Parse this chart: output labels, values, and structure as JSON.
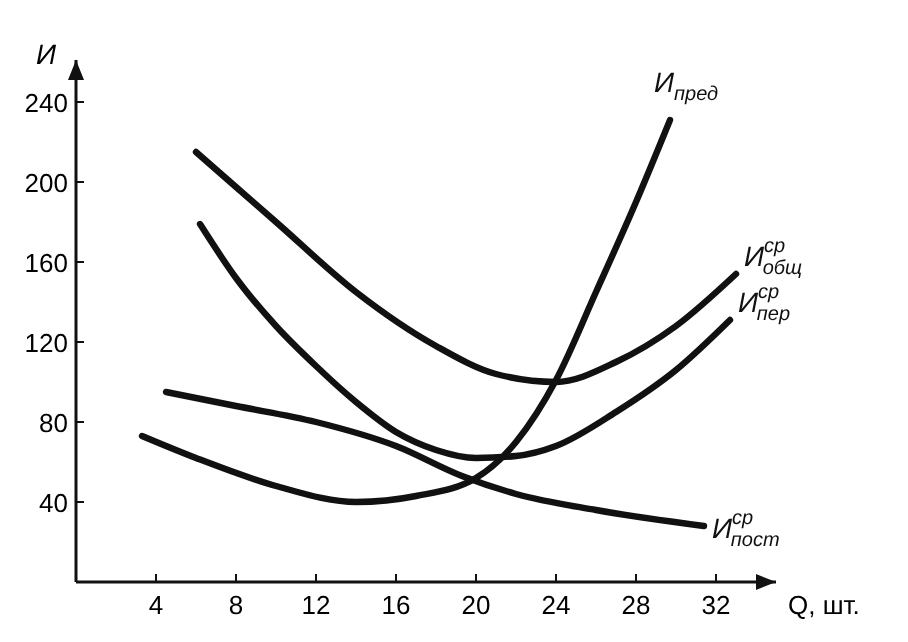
{
  "chart_data": {
    "type": "line",
    "xlabel": "Q, шт.",
    "ylabel": "И",
    "xlim": [
      0,
      35
    ],
    "ylim": [
      0,
      261
    ],
    "xticks": [
      4,
      8,
      12,
      16,
      20,
      24,
      28,
      32
    ],
    "yticks": [
      40,
      80,
      120,
      160,
      200,
      240
    ],
    "grid": false,
    "marker": "none",
    "line_style": "solid",
    "series": [
      {
        "name": "И$_{пред}$",
        "color": "#111111",
        "x": [
          3.3,
          6,
          10,
          14,
          17,
          20,
          22,
          24,
          26,
          28,
          29.7
        ],
        "values": [
          73,
          62,
          48,
          40,
          43,
          52,
          70,
          101,
          145,
          190,
          231
        ]
      },
      {
        "name": "И$^{ср}$$_{общ}$",
        "color": "#111111",
        "x": [
          6,
          10,
          14,
          18,
          21,
          24,
          27,
          30,
          33
        ],
        "values": [
          215,
          180,
          145,
          118,
          104,
          100,
          110,
          128,
          154
        ]
      },
      {
        "name": "И$^{ср}$$_{пер}$",
        "color": "#111111",
        "x": [
          6.2,
          8,
          10,
          12,
          14,
          16,
          18,
          20,
          22,
          24,
          27,
          30,
          32.7
        ],
        "values": [
          179,
          152,
          128,
          108,
          90,
          75,
          66,
          62,
          63,
          68,
          85,
          106,
          131
        ]
      },
      {
        "name": "И$^{ср}$$_{пост}$",
        "color": "#111111",
        "x": [
          4.5,
          8,
          12,
          16,
          19.3,
          22,
          26,
          31.4
        ],
        "values": [
          95,
          88,
          80,
          68,
          53,
          44,
          36,
          28
        ]
      }
    ]
  }
}
